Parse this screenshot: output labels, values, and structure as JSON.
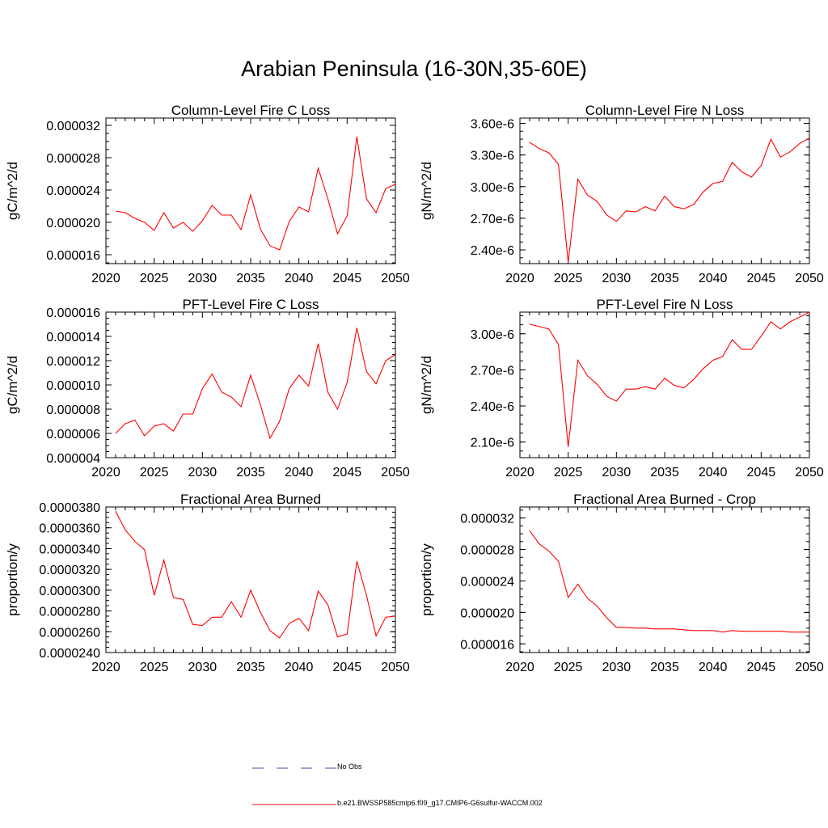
{
  "title": "Arabian Peninsula (16-30N,35-60E)",
  "legend": [
    {
      "label": "No Obs",
      "color": "#4a4aa8",
      "dashed": true
    },
    {
      "label": "b.e21.BWSSP585cmip6.f09_g17.CMIP6-G6sulfur-WACCM.002",
      "color": "#ff0000",
      "dashed": false
    }
  ],
  "line_color": "#ff0000",
  "chart_data": [
    {
      "type": "line",
      "title": "Column-Level Fire C Loss",
      "ylabel": "gC/m^2/d",
      "xlim": [
        2020,
        2050
      ],
      "ylim": [
        1.49e-05,
        3.29e-05
      ],
      "xticks": [
        "2020",
        "2025",
        "2030",
        "2035",
        "2040",
        "2045",
        "2050"
      ],
      "yticks": [
        {
          "value": 1.6e-05,
          "label": "0.000016"
        },
        {
          "value": 2e-05,
          "label": "0.000020"
        },
        {
          "value": 2.4e-05,
          "label": "0.000024"
        },
        {
          "value": 2.8e-05,
          "label": "0.000028"
        },
        {
          "value": 3.2e-05,
          "label": "0.000032"
        }
      ],
      "x": [
        2021,
        2022,
        2023,
        2024,
        2025,
        2026,
        2027,
        2028,
        2029,
        2030,
        2031,
        2032,
        2033,
        2034,
        2035,
        2036,
        2037,
        2038,
        2039,
        2040,
        2041,
        2042,
        2043,
        2044,
        2045,
        2046,
        2047,
        2048,
        2049,
        2050
      ],
      "y": [
        2.14e-05,
        2.12e-05,
        2.05e-05,
        2e-05,
        1.9e-05,
        2.12e-05,
        1.93e-05,
        2e-05,
        1.89e-05,
        2.02e-05,
        2.21e-05,
        2.09e-05,
        2.09e-05,
        1.91e-05,
        2.34e-05,
        1.92e-05,
        1.71e-05,
        1.66e-05,
        2.01e-05,
        2.19e-05,
        2.13e-05,
        2.67e-05,
        2.29e-05,
        1.86e-05,
        2.08e-05,
        3.06e-05,
        2.29e-05,
        2.12e-05,
        2.42e-05,
        2.47e-05
      ]
    },
    {
      "type": "line",
      "title": "Column-Level Fire N Loss",
      "ylabel": "gN/m^2/d",
      "xlim": [
        2020,
        2050
      ],
      "ylim": [
        2.27e-06,
        3.65e-06
      ],
      "xticks": [
        "2020",
        "2025",
        "2030",
        "2035",
        "2040",
        "2045",
        "2050"
      ],
      "yticks": [
        {
          "value": 2.4e-06,
          "label": "2.40e-6"
        },
        {
          "value": 2.7e-06,
          "label": "2.70e-6"
        },
        {
          "value": 3e-06,
          "label": "3.00e-6"
        },
        {
          "value": 3.3e-06,
          "label": "3.30e-6"
        },
        {
          "value": 3.6e-06,
          "label": "3.60e-6"
        }
      ],
      "x": [
        2021,
        2022,
        2023,
        2024,
        2025,
        2026,
        2027,
        2028,
        2029,
        2030,
        2031,
        2032,
        2033,
        2034,
        2035,
        2036,
        2037,
        2038,
        2039,
        2040,
        2041,
        2042,
        2043,
        2044,
        2045,
        2046,
        2047,
        2048,
        2049,
        2050
      ],
      "y": [
        3.42e-06,
        3.36e-06,
        3.32e-06,
        3.21e-06,
        2.28e-06,
        3.07e-06,
        2.92e-06,
        2.86e-06,
        2.73e-06,
        2.67e-06,
        2.77e-06,
        2.76e-06,
        2.81e-06,
        2.77e-06,
        2.91e-06,
        2.81e-06,
        2.79e-06,
        2.83e-06,
        2.95e-06,
        3.03e-06,
        3.05e-06,
        3.23e-06,
        3.14e-06,
        3.09e-06,
        3.2e-06,
        3.45e-06,
        3.28e-06,
        3.33e-06,
        3.41e-06,
        3.46e-06
      ]
    },
    {
      "type": "line",
      "title": "PFT-Level Fire C Loss",
      "ylabel": "gC/m^2/d",
      "xlim": [
        2020,
        2050
      ],
      "ylim": [
        4e-06,
        1.6e-05
      ],
      "xticks": [
        "2020",
        "2025",
        "2030",
        "2035",
        "2040",
        "2045",
        "2050"
      ],
      "yticks": [
        {
          "value": 4e-06,
          "label": "0.000004"
        },
        {
          "value": 6e-06,
          "label": "0.000006"
        },
        {
          "value": 8e-06,
          "label": "0.000008"
        },
        {
          "value": 1e-05,
          "label": "0.000010"
        },
        {
          "value": 1.2e-05,
          "label": "0.000012"
        },
        {
          "value": 1.4e-05,
          "label": "0.000014"
        },
        {
          "value": 1.6e-05,
          "label": "0.000016"
        }
      ],
      "x": [
        2021,
        2022,
        2023,
        2024,
        2025,
        2026,
        2027,
        2028,
        2029,
        2030,
        2031,
        2032,
        2033,
        2034,
        2035,
        2036,
        2037,
        2038,
        2039,
        2040,
        2041,
        2042,
        2043,
        2044,
        2045,
        2046,
        2047,
        2048,
        2049,
        2050
      ],
      "y": [
        6e-06,
        6.8e-06,
        7.1e-06,
        5.8e-06,
        6.6e-06,
        6.8e-06,
        6.2e-06,
        7.6e-06,
        7.6e-06,
        9.7e-06,
        1.09e-05,
        9.4e-06,
        9e-06,
        8.2e-06,
        1.08e-05,
        8.4e-06,
        5.6e-06,
        7e-06,
        9.7e-06,
        1.08e-05,
        9.9e-06,
        1.34e-05,
        9.4e-06,
        8e-06,
        1.02e-05,
        1.47e-05,
        1.11e-05,
        1.01e-05,
        1.2e-05,
        1.25e-05
      ]
    },
    {
      "type": "line",
      "title": "PFT-Level Fire N Loss",
      "ylabel": "gN/m^2/d",
      "xlim": [
        2020,
        2050
      ],
      "ylim": [
        1.97e-06,
        3.18e-06
      ],
      "xticks": [
        "2020",
        "2025",
        "2030",
        "2035",
        "2040",
        "2045",
        "2050"
      ],
      "yticks": [
        {
          "value": 2.1e-06,
          "label": "2.10e-6"
        },
        {
          "value": 2.4e-06,
          "label": "2.40e-6"
        },
        {
          "value": 2.7e-06,
          "label": "2.70e-6"
        },
        {
          "value": 3e-06,
          "label": "3.00e-6"
        }
      ],
      "x": [
        2021,
        2022,
        2023,
        2024,
        2025,
        2026,
        2027,
        2028,
        2029,
        2030,
        2031,
        2032,
        2033,
        2034,
        2035,
        2036,
        2037,
        2038,
        2039,
        2040,
        2041,
        2042,
        2043,
        2044,
        2045,
        2046,
        2047,
        2048,
        2049,
        2050
      ],
      "y": [
        3.08e-06,
        3.06e-06,
        3.04e-06,
        2.91e-06,
        2.06e-06,
        2.78e-06,
        2.65e-06,
        2.58e-06,
        2.48e-06,
        2.44e-06,
        2.54e-06,
        2.54e-06,
        2.56e-06,
        2.54e-06,
        2.63e-06,
        2.57e-06,
        2.55e-06,
        2.62e-06,
        2.71e-06,
        2.78e-06,
        2.81e-06,
        2.95e-06,
        2.87e-06,
        2.87e-06,
        2.98e-06,
        3.1e-06,
        3.04e-06,
        3.1e-06,
        3.14e-06,
        3.18e-06
      ]
    },
    {
      "type": "line",
      "title": "Fractional Area Burned",
      "ylabel": "proportion/y",
      "xlim": [
        2020,
        2050
      ],
      "ylim": [
        2.4e-05,
        3.8e-05
      ],
      "xticks": [
        "2020",
        "2025",
        "2030",
        "2035",
        "2040",
        "2045",
        "2050"
      ],
      "yticks": [
        {
          "value": 2.4e-05,
          "label": "0.0000240"
        },
        {
          "value": 2.6e-05,
          "label": "0.0000260"
        },
        {
          "value": 2.8e-05,
          "label": "0.0000280"
        },
        {
          "value": 3e-05,
          "label": "0.0000300"
        },
        {
          "value": 3.2e-05,
          "label": "0.0000320"
        },
        {
          "value": 3.4e-05,
          "label": "0.0000340"
        },
        {
          "value": 3.6e-05,
          "label": "0.0000360"
        },
        {
          "value": 3.8e-05,
          "label": "0.0000380"
        }
      ],
      "x": [
        2021,
        2022,
        2023,
        2024,
        2025,
        2026,
        2027,
        2028,
        2029,
        2030,
        2031,
        2032,
        2033,
        2034,
        2035,
        2036,
        2037,
        2038,
        2039,
        2040,
        2041,
        2042,
        2043,
        2044,
        2045,
        2046,
        2047,
        2048,
        2049,
        2050
      ],
      "y": [
        3.76e-05,
        3.58e-05,
        3.47e-05,
        3.39e-05,
        2.95e-05,
        3.29e-05,
        2.93e-05,
        2.91e-05,
        2.67e-05,
        2.66e-05,
        2.74e-05,
        2.74e-05,
        2.89e-05,
        2.74e-05,
        3e-05,
        2.79e-05,
        2.61e-05,
        2.54e-05,
        2.68e-05,
        2.73e-05,
        2.61e-05,
        2.99e-05,
        2.86e-05,
        2.55e-05,
        2.58e-05,
        3.28e-05,
        2.95e-05,
        2.56e-05,
        2.74e-05,
        2.75e-05
      ]
    },
    {
      "type": "line",
      "title": "Fractional Area Burned - Crop",
      "ylabel": "proportion/y",
      "xlim": [
        2020,
        2050
      ],
      "ylim": [
        1.49e-05,
        3.34e-05
      ],
      "xticks": [
        "2020",
        "2025",
        "2030",
        "2035",
        "2040",
        "2045",
        "2050"
      ],
      "yticks": [
        {
          "value": 1.6e-05,
          "label": "0.000016"
        },
        {
          "value": 2e-05,
          "label": "0.000020"
        },
        {
          "value": 2.4e-05,
          "label": "0.000024"
        },
        {
          "value": 2.8e-05,
          "label": "0.000028"
        },
        {
          "value": 3.2e-05,
          "label": "0.000032"
        }
      ],
      "x": [
        2021,
        2022,
        2023,
        2024,
        2025,
        2026,
        2027,
        2028,
        2029,
        2030,
        2031,
        2032,
        2033,
        2034,
        2035,
        2036,
        2037,
        2038,
        2039,
        2040,
        2041,
        2042,
        2043,
        2044,
        2045,
        2046,
        2047,
        2048,
        2049,
        2050
      ],
      "y": [
        3.04e-05,
        2.87e-05,
        2.78e-05,
        2.65e-05,
        2.19e-05,
        2.36e-05,
        2.18e-05,
        2.08e-05,
        1.93e-05,
        1.81e-05,
        1.81e-05,
        1.8e-05,
        1.8e-05,
        1.79e-05,
        1.79e-05,
        1.79e-05,
        1.78e-05,
        1.77e-05,
        1.77e-05,
        1.77e-05,
        1.75e-05,
        1.77e-05,
        1.76e-05,
        1.76e-05,
        1.76e-05,
        1.76e-05,
        1.76e-05,
        1.75e-05,
        1.75e-05,
        1.75e-05
      ]
    }
  ]
}
